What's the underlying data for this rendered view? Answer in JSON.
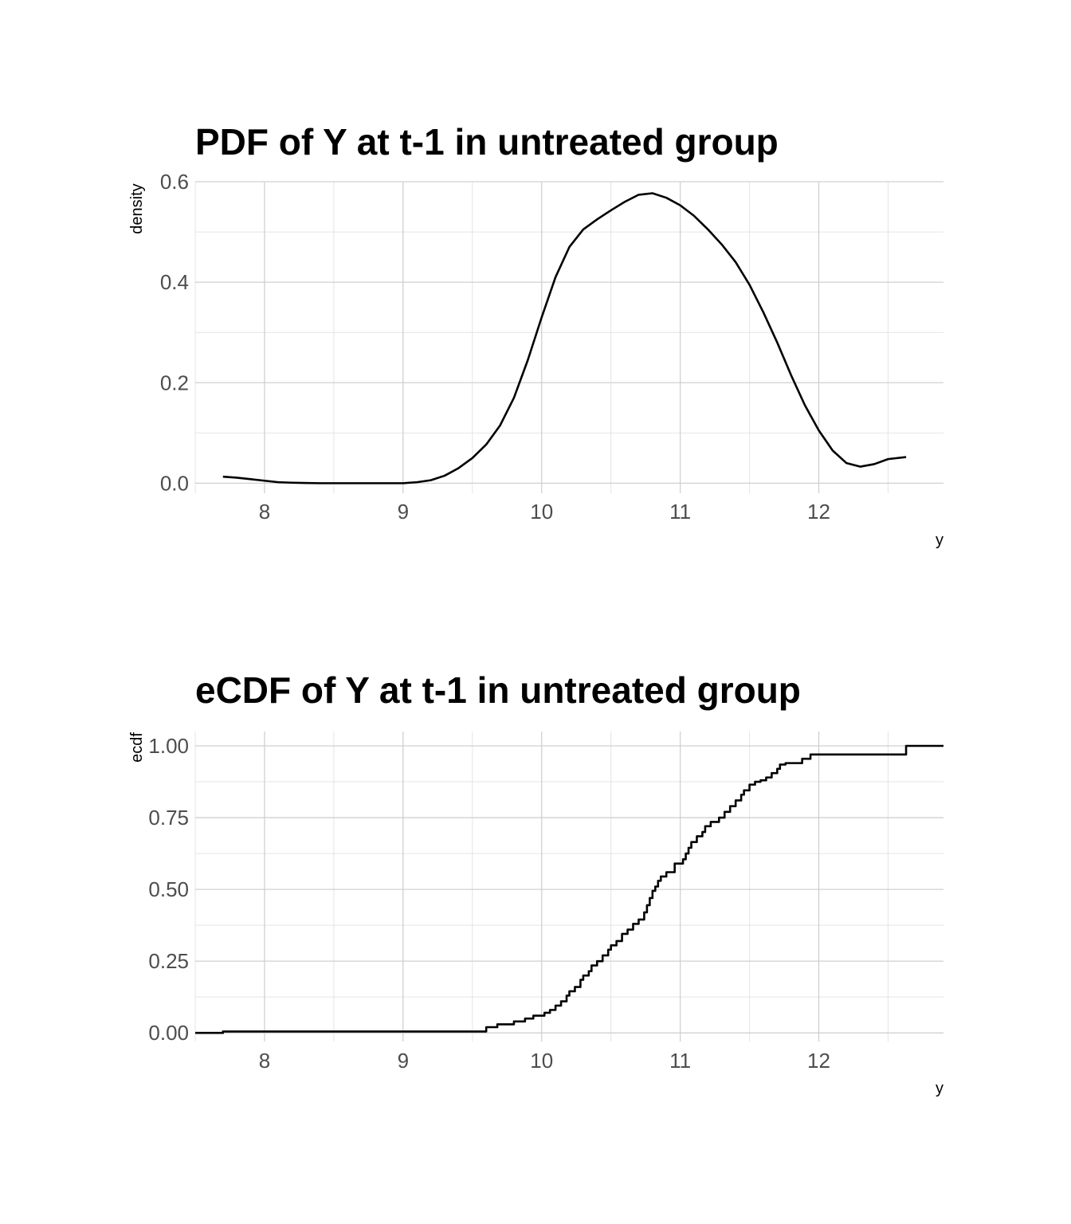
{
  "chart_data": [
    {
      "type": "line",
      "title": "PDF of Y at t-1 in untreated group",
      "xlabel": "y",
      "ylabel": "density",
      "xlim": [
        7.5,
        12.9
      ],
      "ylim": [
        -0.02,
        0.6
      ],
      "x_ticks": [
        8,
        9,
        10,
        11,
        12
      ],
      "x_tick_labels": [
        "8",
        "9",
        "10",
        "11",
        "12"
      ],
      "y_ticks": [
        0.0,
        0.2,
        0.4,
        0.6
      ],
      "y_tick_labels": [
        "0.0",
        "0.2",
        "0.4",
        "0.6"
      ],
      "grid": true,
      "series": [
        {
          "x": [
            7.7,
            7.8,
            7.9,
            8.0,
            8.1,
            8.2,
            8.4,
            8.6,
            8.8,
            9.0,
            9.1,
            9.2,
            9.3,
            9.4,
            9.5,
            9.6,
            9.7,
            9.8,
            9.9,
            10.0,
            10.1,
            10.2,
            10.3,
            10.4,
            10.5,
            10.6,
            10.7,
            10.8,
            10.9,
            11.0,
            11.1,
            11.2,
            11.3,
            11.4,
            11.5,
            11.6,
            11.7,
            11.8,
            11.9,
            12.0,
            12.1,
            12.2,
            12.3,
            12.4,
            12.5,
            12.63
          ],
          "y": [
            0.013,
            0.011,
            0.008,
            0.005,
            0.002,
            0.001,
            0.0,
            0.0,
            0.0,
            0.0,
            0.002,
            0.006,
            0.015,
            0.03,
            0.05,
            0.077,
            0.115,
            0.17,
            0.245,
            0.33,
            0.41,
            0.47,
            0.505,
            0.525,
            0.543,
            0.56,
            0.574,
            0.577,
            0.568,
            0.553,
            0.532,
            0.505,
            0.475,
            0.44,
            0.395,
            0.34,
            0.28,
            0.215,
            0.155,
            0.105,
            0.065,
            0.04,
            0.033,
            0.038,
            0.048,
            0.052
          ]
        }
      ]
    },
    {
      "type": "line",
      "title": "eCDF of Y at t-1 in untreated group",
      "xlabel": "y",
      "ylabel": "ecdf",
      "xlim": [
        7.5,
        12.9
      ],
      "ylim": [
        -0.03,
        1.05
      ],
      "x_ticks": [
        8,
        9,
        10,
        11,
        12
      ],
      "x_tick_labels": [
        "8",
        "9",
        "10",
        "11",
        "12"
      ],
      "y_ticks": [
        0.0,
        0.25,
        0.5,
        0.75,
        1.0
      ],
      "y_tick_labels": [
        "0.00",
        "0.25",
        "0.50",
        "0.75",
        "1.00"
      ],
      "grid": true,
      "step": true,
      "series": [
        {
          "x": [
            7.5,
            7.7,
            9.6,
            9.68,
            9.8,
            9.88,
            9.94,
            10.02,
            10.06,
            10.1,
            10.14,
            10.18,
            10.2,
            10.24,
            10.28,
            10.3,
            10.34,
            10.36,
            10.4,
            10.44,
            10.48,
            10.5,
            10.54,
            10.58,
            10.62,
            10.66,
            10.7,
            10.74,
            10.76,
            10.78,
            10.8,
            10.82,
            10.84,
            10.86,
            10.9,
            10.96,
            11.02,
            11.04,
            11.06,
            11.08,
            11.12,
            11.16,
            11.18,
            11.22,
            11.28,
            11.32,
            11.36,
            11.4,
            11.44,
            11.46,
            11.5,
            11.54,
            11.58,
            11.62,
            11.66,
            11.7,
            11.72,
            11.76,
            11.88,
            11.94,
            12.63,
            12.9
          ],
          "y": [
            0.0,
            0.005,
            0.02,
            0.03,
            0.04,
            0.05,
            0.06,
            0.07,
            0.08,
            0.095,
            0.11,
            0.13,
            0.145,
            0.16,
            0.185,
            0.2,
            0.215,
            0.235,
            0.25,
            0.27,
            0.29,
            0.305,
            0.32,
            0.345,
            0.36,
            0.38,
            0.395,
            0.42,
            0.445,
            0.47,
            0.495,
            0.51,
            0.53,
            0.545,
            0.56,
            0.59,
            0.605,
            0.625,
            0.645,
            0.665,
            0.685,
            0.7,
            0.72,
            0.735,
            0.75,
            0.77,
            0.79,
            0.81,
            0.83,
            0.845,
            0.865,
            0.875,
            0.88,
            0.89,
            0.905,
            0.92,
            0.935,
            0.94,
            0.955,
            0.97,
            1.0,
            1.0
          ]
        }
      ]
    }
  ]
}
